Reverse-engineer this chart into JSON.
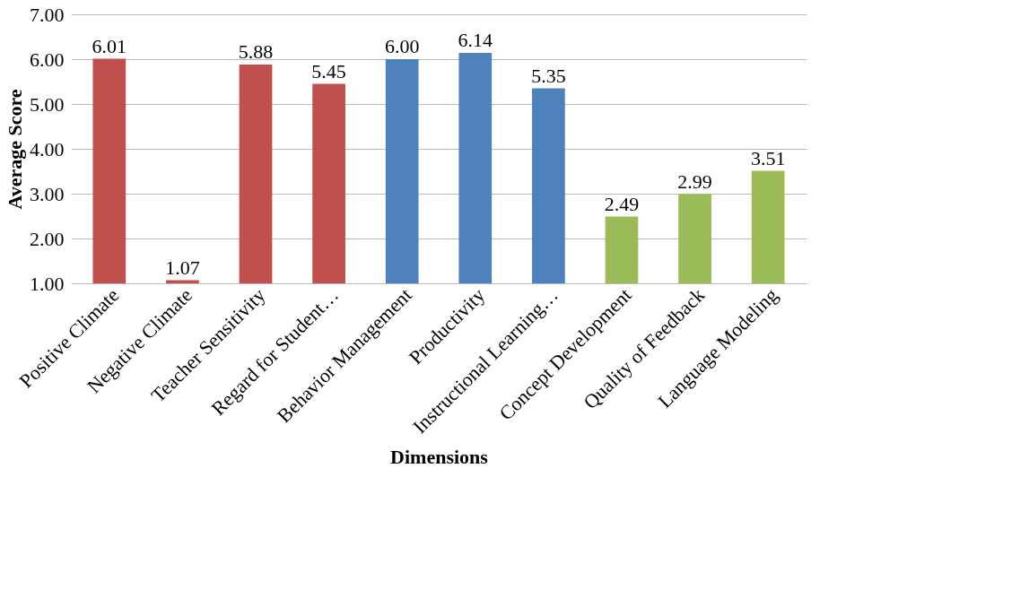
{
  "chart_data": {
    "type": "bar",
    "xlabel": "Dimensions",
    "ylabel": "Average Score",
    "categories": [
      "Positive Climate",
      "Negative Climate",
      "Teacher Sensitivity",
      "Regard for Student…",
      "Behavior Management",
      "Productivity",
      "Instructional Learning…",
      "Concept Development",
      "Quality of Feedback",
      "Language Modeling"
    ],
    "values": [
      6.01,
      1.07,
      5.88,
      5.45,
      6.0,
      6.14,
      5.35,
      2.49,
      2.99,
      3.51
    ],
    "colors": [
      "#c0504d",
      "#c0504d",
      "#c0504d",
      "#c0504d",
      "#4f81bd",
      "#4f81bd",
      "#4f81bd",
      "#9bbb59",
      "#9bbb59",
      "#9bbb59"
    ],
    "ylim": [
      1,
      7
    ],
    "yticks": [
      {
        "value": 1,
        "label": "1.00"
      },
      {
        "value": 2,
        "label": "2.00"
      },
      {
        "value": 3,
        "label": "3.00"
      },
      {
        "value": 4,
        "label": "4.00"
      },
      {
        "value": 5,
        "label": "5.00"
      },
      {
        "value": 6,
        "label": "6.00"
      },
      {
        "value": 7,
        "label": "7.00"
      }
    ],
    "value_labels": [
      "6.01",
      "1.07",
      "5.88",
      "5.45",
      "6.00",
      "6.14",
      "5.35",
      "2.49",
      "2.99",
      "3.51"
    ],
    "grid": "y",
    "legend": false
  }
}
